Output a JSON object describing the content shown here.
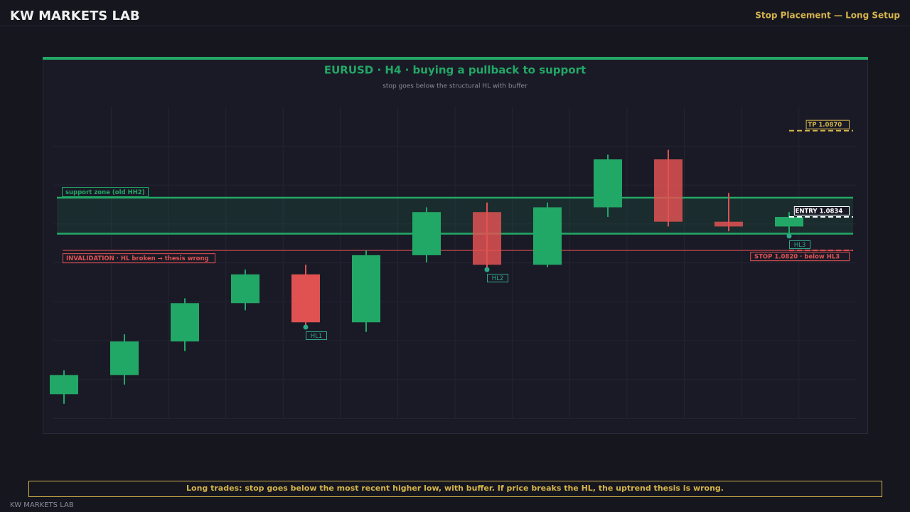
{
  "header": {
    "brand": "KW MARKETS LAB",
    "section": "Stop Placement — Long Setup"
  },
  "chart_data": {
    "type": "candlestick",
    "title": "EURUSD  ·  H4  ·  buying a pullback to support",
    "subtitle": "stop goes below the structural HL with buffer",
    "ylim": [
      1.075,
      1.088
    ],
    "up_color": "#22a866",
    "down_color": "#e05252",
    "open": [
      1.076,
      1.0768,
      1.0782,
      1.0798,
      1.081,
      1.079,
      1.0818,
      1.0836,
      1.0814,
      1.0838,
      1.0858,
      1.0832,
      1.083
    ],
    "high": [
      1.077,
      1.0785,
      1.08,
      1.0812,
      1.0814,
      1.082,
      1.0838,
      1.084,
      1.084,
      1.086,
      1.0862,
      1.0844,
      1.0836
    ],
    "low": [
      1.0756,
      1.0764,
      1.0778,
      1.0795,
      1.0788,
      1.0786,
      1.0815,
      1.0812,
      1.0813,
      1.0834,
      1.083,
      1.0828,
      1.0826
    ],
    "close": [
      1.0768,
      1.0782,
      1.0798,
      1.081,
      1.079,
      1.0818,
      1.0836,
      1.0814,
      1.0838,
      1.0858,
      1.0832,
      1.083,
      1.0834
    ],
    "zone": {
      "label": "support zone (old HH2)",
      "low": 1.0827,
      "high": 1.0842
    },
    "invalidation": {
      "label": "INVALIDATION · HL broken → thesis wrong",
      "value": 1.082
    },
    "swing_lows": [
      {
        "label": "HL1",
        "value": 1.0788
      },
      {
        "label": "HL2",
        "value": 1.0812
      },
      {
        "label": "HL3",
        "value": 1.0826
      }
    ],
    "levels": [
      {
        "label": "TP 1.0870",
        "value": 1.087,
        "color": "#d4b44a"
      },
      {
        "label": "ENTRY 1.0834",
        "value": 1.0834,
        "color": "#ffffff"
      },
      {
        "label": "STOP 1.0820 · below HL3",
        "value": 1.082,
        "color": "#e05252"
      }
    ]
  },
  "footer": {
    "note": "Long trades: stop goes below the most recent higher low, with buffer. If price breaks the HL, the uptrend thesis is wrong.",
    "brand": "KW MARKETS LAB"
  }
}
